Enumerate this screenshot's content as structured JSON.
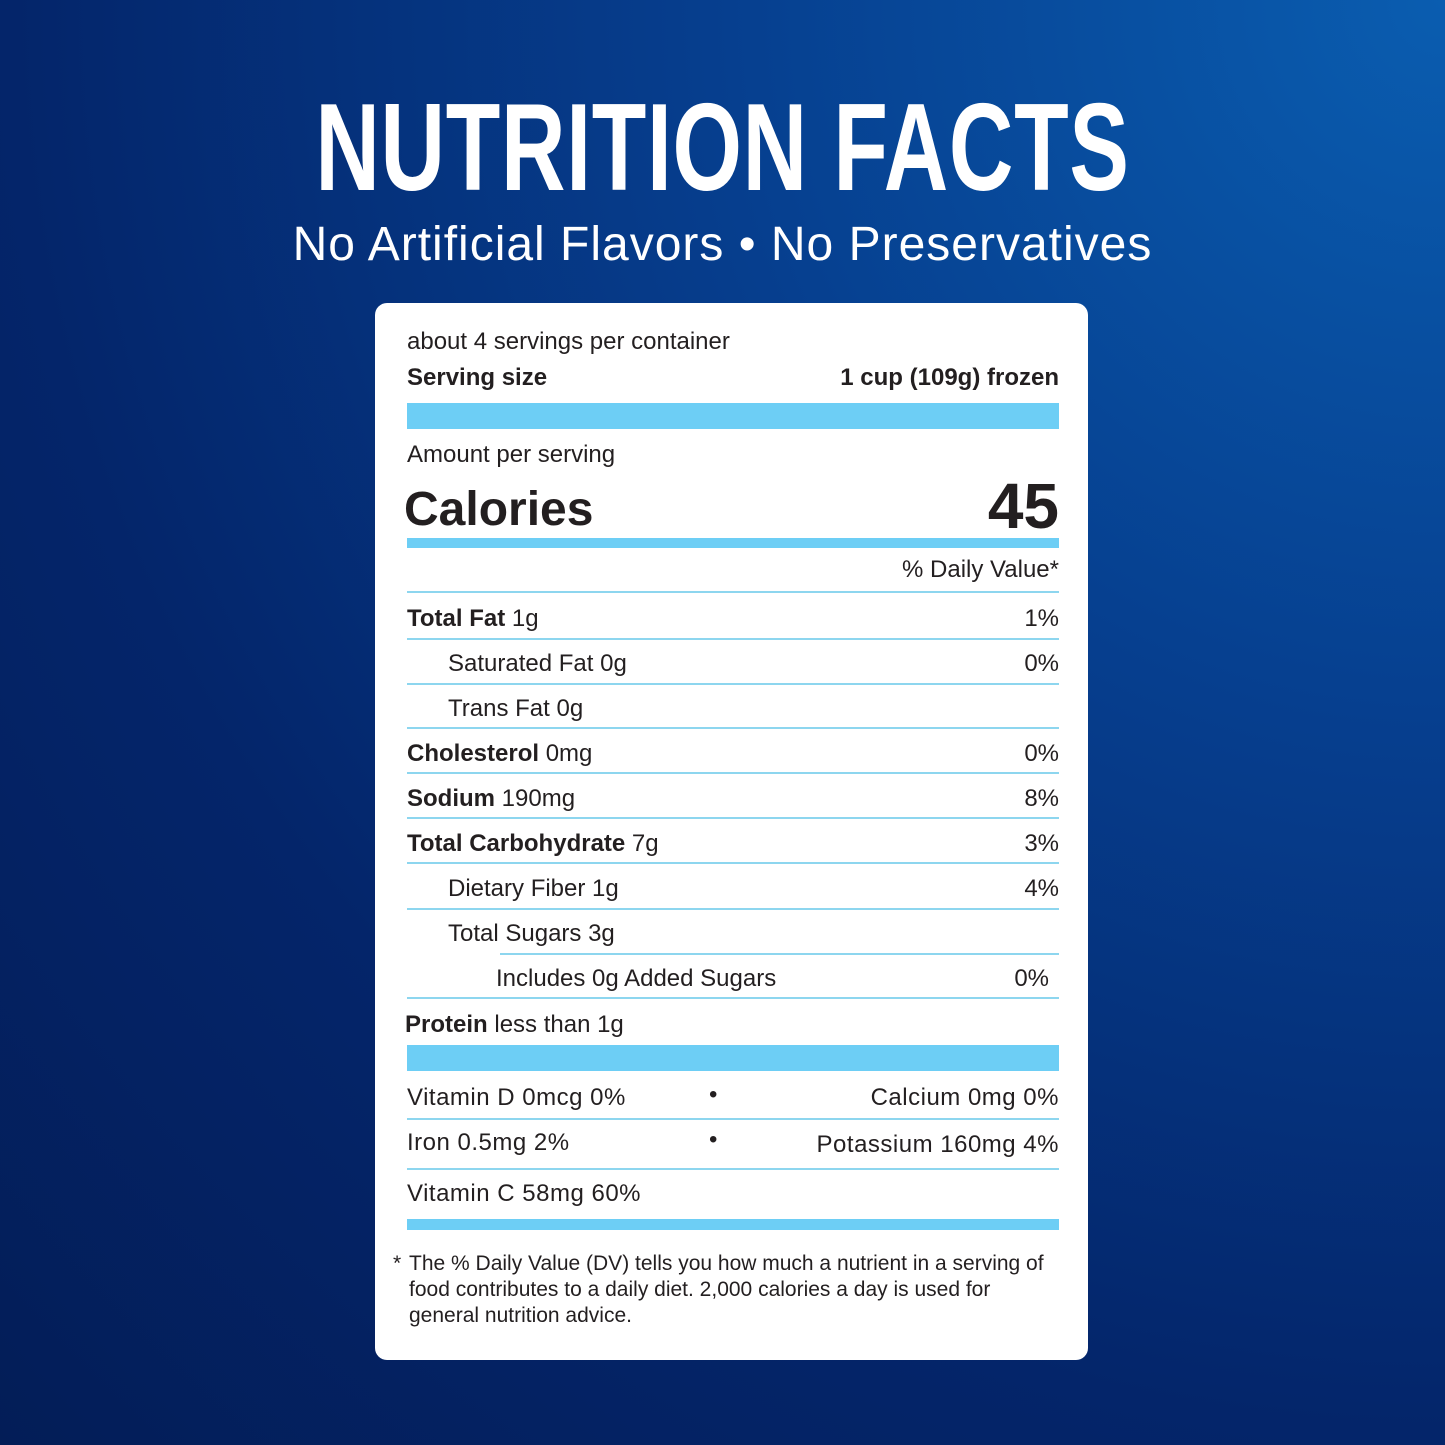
{
  "header": {
    "title": "NUTRITION FACTS",
    "subtitle": "No Artificial Flavors • No Preservatives"
  },
  "label": {
    "servings_per_container": "about 4 servings per container",
    "serving_size_label": "Serving size",
    "serving_size_value": "1 cup (109g) frozen",
    "amount_per_serving": "Amount per serving",
    "calories_label": "Calories",
    "calories_value": 45,
    "dv_header": "% Daily Value*",
    "nutrients": [
      {
        "name": "Total Fat",
        "amount": "1g",
        "dv": "1%"
      },
      {
        "name": "Saturated Fat",
        "amount": "0g",
        "dv": "0%"
      },
      {
        "name": "Trans Fat",
        "amount": "0g"
      },
      {
        "name": "Cholesterol",
        "amount": "0mg",
        "dv": "0%"
      },
      {
        "name": "Sodium",
        "amount": "190mg",
        "dv": "8%"
      },
      {
        "name": "Total Carbohydrate",
        "amount": "7g",
        "dv": "3%"
      },
      {
        "name": "Dietary Fiber",
        "amount": "1g",
        "dv": "4%"
      },
      {
        "name": "Total Sugars",
        "amount": "3g"
      },
      {
        "name": "Includes 0g Added Sugars",
        "dv": "0%"
      },
      {
        "name": "Protein",
        "amount": "less than 1g"
      }
    ],
    "vitamins": [
      [
        "Vitamin D 0mcg 0%",
        "Calcium 0mg 0%"
      ],
      [
        "Iron 0.5mg 2%",
        "Potassium 160mg 4%"
      ],
      [
        "Vitamin C 58mg 60%"
      ]
    ],
    "separator": "•",
    "footnote": {
      "marker": "*",
      "text": "The % Daily Value (DV) tells you how much a nutrient in a serving of food contributes to a daily diet. 2,000 calories a day is used for general nutrition advice."
    }
  }
}
